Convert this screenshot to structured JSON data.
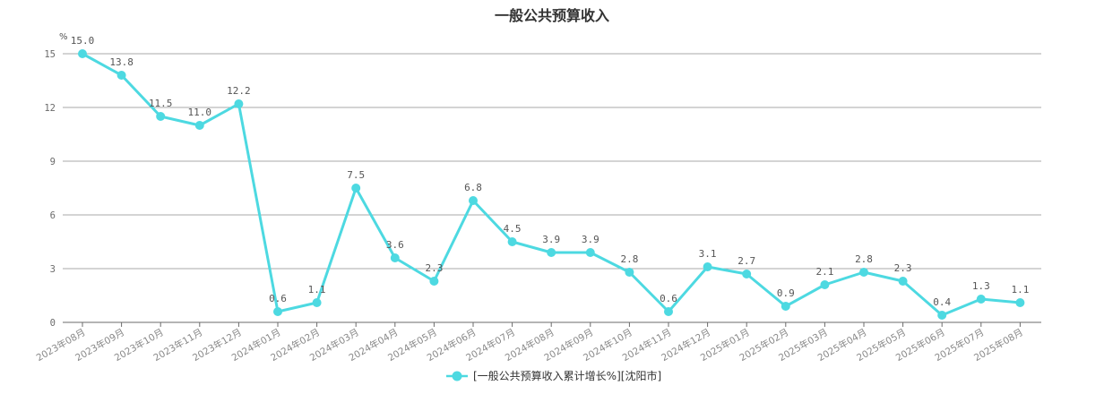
{
  "chart_data": {
    "type": "line",
    "title": "一般公共预算收入",
    "ylabel": "%",
    "xlabel": "",
    "ylim": [
      0,
      15
    ],
    "yticks": [
      0,
      3,
      6,
      9,
      12,
      15
    ],
    "grid": true,
    "legend_position": "bottom-center",
    "categories": [
      "2023年08月",
      "2023年09月",
      "2023年10月",
      "2023年11月",
      "2023年12月",
      "2024年01月",
      "2024年02月",
      "2024年03月",
      "2024年04月",
      "2024年05月",
      "2024年06月",
      "2024年07月",
      "2024年08月",
      "2024年09月",
      "2024年10月",
      "2024年11月",
      "2024年12月",
      "2025年01月",
      "2025年02月",
      "2025年03月",
      "2025年04月",
      "2025年05月",
      "2025年06月",
      "2025年07月",
      "2025年08月"
    ],
    "series": [
      {
        "name": "[一般公共预算收入累计增长%][沈阳市]",
        "color": "#4dd9e1",
        "values": [
          15.0,
          13.8,
          11.5,
          11.0,
          12.2,
          0.6,
          1.1,
          7.5,
          3.6,
          2.3,
          6.8,
          4.5,
          3.9,
          3.9,
          2.8,
          0.6,
          3.1,
          2.7,
          0.9,
          2.1,
          2.8,
          2.3,
          0.4,
          1.3,
          1.1
        ],
        "data_labels": [
          "15.0",
          "13.8",
          "11.5",
          "11.0",
          "12.2",
          "0.6",
          "1.1",
          "7.5",
          "3.6",
          "2.3",
          "6.8",
          "4.5",
          "3.9",
          "3.9",
          "2.8",
          "0.6",
          "3.1",
          "2.7",
          "0.9",
          "2.1",
          "2.8",
          "2.3",
          "0.4",
          "1.3",
          "1.1"
        ]
      }
    ]
  }
}
